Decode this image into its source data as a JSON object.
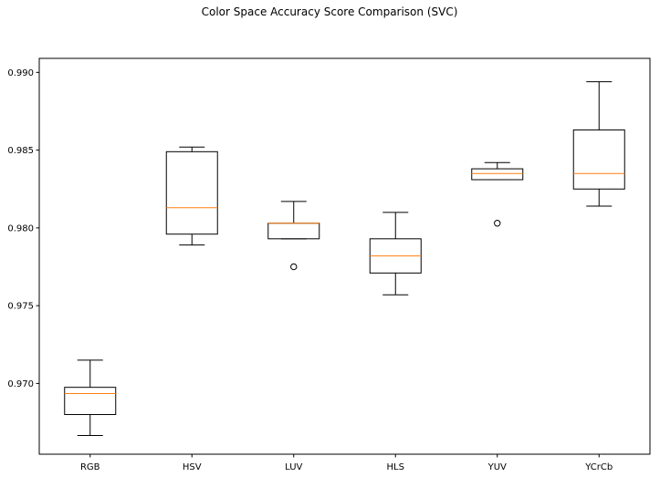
{
  "chart_data": {
    "type": "boxplot",
    "title": "Color Space Accuracy Score Comparison (SVC)",
    "xlabel": "",
    "ylabel": "",
    "categories": [
      "RGB",
      "HSV",
      "LUV",
      "HLS",
      "YUV",
      "YCrCb"
    ],
    "boxes": [
      {
        "label": "RGB",
        "whisker_low": 0.96665,
        "q1": 0.968,
        "median": 0.96935,
        "q3": 0.96975,
        "whisker_high": 0.9715,
        "outliers": []
      },
      {
        "label": "HSV",
        "whisker_low": 0.9789,
        "q1": 0.9796,
        "median": 0.9813,
        "q3": 0.9849,
        "whisker_high": 0.9852,
        "outliers": []
      },
      {
        "label": "LUV",
        "whisker_low": 0.9793,
        "q1": 0.9793,
        "median": 0.9803,
        "q3": 0.9803,
        "whisker_high": 0.9817,
        "outliers": [
          0.9775
        ]
      },
      {
        "label": "HLS",
        "whisker_low": 0.9757,
        "q1": 0.9771,
        "median": 0.9782,
        "q3": 0.9793,
        "whisker_high": 0.981,
        "outliers": []
      },
      {
        "label": "YUV",
        "whisker_low": 0.9831,
        "q1": 0.9831,
        "median": 0.9835,
        "q3": 0.9838,
        "whisker_high": 0.9842,
        "outliers": [
          0.9803
        ]
      },
      {
        "label": "YCrCb",
        "whisker_low": 0.9814,
        "q1": 0.9825,
        "median": 0.9835,
        "q3": 0.9863,
        "whisker_high": 0.9894,
        "outliers": []
      }
    ],
    "ylim": [
      0.96545,
      0.9909
    ],
    "yticks": [
      0.97,
      0.975,
      0.98,
      0.985,
      0.99
    ],
    "ytick_labels": [
      "0.970",
      "0.975",
      "0.980",
      "0.985",
      "0.990"
    ],
    "grid": false,
    "colors": {
      "box": "#000000",
      "median": "#ff7f0e",
      "background": "#ffffff"
    }
  }
}
